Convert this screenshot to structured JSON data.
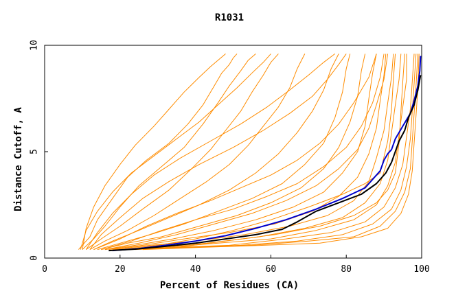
{
  "chart_data": {
    "type": "line",
    "title": "R1031",
    "xlabel": "Percent of Residues (CA)",
    "ylabel": "Distance Cutoff, A",
    "xlim": [
      0,
      100
    ],
    "ylim": [
      0,
      10
    ],
    "x_ticks": [
      "0",
      "20",
      "40",
      "60",
      "80",
      "100"
    ],
    "y_ticks": [
      "0",
      "5",
      "10"
    ],
    "colors": {
      "background_lines": "#ff8c00",
      "highlight_blue": "#0000cc",
      "highlight_black": "#000000",
      "axis": "#000000"
    },
    "series": [
      {
        "color": "#ff8c00",
        "x": [
          9,
          12,
          14,
          18,
          22,
          27,
          33,
          38,
          42,
          45,
          47,
          49,
          50,
          51
        ],
        "y": [
          0.4,
          1,
          1.8,
          2.8,
          3.8,
          4.6,
          5.4,
          6.3,
          7.2,
          8.1,
          8.7,
          9.1,
          9.4,
          9.6
        ]
      },
      {
        "color": "#ff8c00",
        "x": [
          10,
          13,
          16,
          20,
          25,
          31,
          37,
          42,
          46,
          49,
          52,
          54,
          56
        ],
        "y": [
          0.4,
          0.9,
          1.5,
          2.4,
          3.4,
          4.3,
          5.2,
          6.3,
          7.3,
          8.1,
          8.8,
          9.3,
          9.6
        ]
      },
      {
        "color": "#ff8c00",
        "x": [
          11,
          15,
          20,
          26,
          33,
          39,
          44,
          48,
          52,
          55,
          58,
          60,
          62
        ],
        "y": [
          0.4,
          0.9,
          1.5,
          2.3,
          3.2,
          4.2,
          5.1,
          6,
          6.9,
          7.8,
          8.6,
          9.2,
          9.6
        ]
      },
      {
        "color": "#ff8c00",
        "x": [
          12,
          16,
          22,
          29,
          36,
          43,
          49,
          54,
          58,
          62,
          65,
          67,
          69
        ],
        "y": [
          0.4,
          0.8,
          1.3,
          2,
          2.8,
          3.6,
          4.4,
          5.3,
          6.2,
          7.1,
          8,
          8.9,
          9.6
        ]
      },
      {
        "color": "#ff8c00",
        "x": [
          13,
          18,
          25,
          33,
          41,
          49,
          56,
          62,
          67,
          71,
          74,
          76,
          78
        ],
        "y": [
          0.4,
          0.8,
          1.3,
          1.9,
          2.5,
          3.2,
          4,
          4.9,
          5.9,
          6.9,
          7.9,
          8.9,
          9.6
        ]
      },
      {
        "color": "#ff8c00",
        "x": [
          14,
          20,
          28,
          37,
          46,
          55,
          63,
          69,
          74,
          77,
          79,
          80,
          81
        ],
        "y": [
          0.4,
          0.7,
          1.1,
          1.6,
          2.2,
          2.8,
          3.5,
          4.4,
          5.4,
          6.6,
          7.8,
          8.9,
          9.6
        ]
      },
      {
        "color": "#ff8c00",
        "x": [
          15,
          22,
          31,
          41,
          51,
          60,
          68,
          74,
          78,
          81,
          83,
          84,
          85
        ],
        "y": [
          0.4,
          0.7,
          1,
          1.5,
          2,
          2.6,
          3.3,
          4.2,
          5.2,
          6.4,
          7.6,
          8.8,
          9.6
        ]
      },
      {
        "color": "#ff8c00",
        "x": [
          16,
          24,
          34,
          45,
          56,
          66,
          74,
          79,
          83,
          85,
          86,
          87,
          88
        ],
        "y": [
          0.4,
          0.6,
          0.9,
          1.3,
          1.8,
          2.4,
          3.1,
          4,
          5,
          6.2,
          7.5,
          8.7,
          9.6
        ]
      },
      {
        "color": "#ff8c00",
        "x": [
          17,
          26,
          37,
          49,
          61,
          71,
          78,
          83,
          86,
          88,
          89,
          90,
          90.5
        ],
        "y": [
          0.4,
          0.6,
          0.9,
          1.2,
          1.6,
          2.2,
          2.9,
          3.8,
          4.9,
          6.1,
          7.4,
          8.6,
          9.6
        ]
      },
      {
        "color": "#ff8c00",
        "x": [
          18,
          28,
          40,
          53,
          65,
          75,
          82,
          86,
          88,
          90,
          91,
          92,
          92.5
        ],
        "y": [
          0.4,
          0.6,
          0.8,
          1.1,
          1.5,
          2,
          2.7,
          3.6,
          4.7,
          6,
          7.3,
          8.5,
          9.6
        ]
      },
      {
        "color": "#ff8c00",
        "x": [
          19,
          30,
          43,
          57,
          69,
          79,
          85,
          89,
          91,
          92,
          93,
          94,
          94.5
        ],
        "y": [
          0.4,
          0.5,
          0.7,
          1,
          1.4,
          1.9,
          2.6,
          3.5,
          4.6,
          5.9,
          7.2,
          8.4,
          9.6
        ]
      },
      {
        "color": "#ff8c00",
        "x": [
          20,
          32,
          46,
          60,
          72,
          82,
          88,
          91,
          93,
          94,
          95,
          96,
          96
        ],
        "y": [
          0.4,
          0.5,
          0.7,
          0.9,
          1.3,
          1.8,
          2.5,
          3.4,
          4.5,
          5.8,
          7.1,
          8.4,
          9.6
        ]
      },
      {
        "color": "#ff8c00",
        "x": [
          21,
          34,
          49,
          64,
          76,
          85,
          90,
          93,
          95,
          96,
          97,
          97.5,
          98
        ],
        "y": [
          0.4,
          0.5,
          0.6,
          0.9,
          1.2,
          1.7,
          2.4,
          3.3,
          4.4,
          5.7,
          7,
          8.3,
          9.6
        ]
      },
      {
        "color": "#ff8c00",
        "x": [
          22,
          36,
          52,
          67,
          79,
          87,
          92,
          94.5,
          96,
          97,
          97.5,
          98,
          98.5
        ],
        "y": [
          0.4,
          0.5,
          0.6,
          0.8,
          1.1,
          1.6,
          2.3,
          3.2,
          4.3,
          5.6,
          6.9,
          8.2,
          9.6
        ]
      },
      {
        "color": "#ff8c00",
        "x": [
          24,
          38,
          55,
          70,
          82,
          89,
          93,
          95.5,
          97,
          97.5,
          98,
          98.5,
          99
        ],
        "y": [
          0.4,
          0.5,
          0.6,
          0.8,
          1,
          1.5,
          2.2,
          3.1,
          4.2,
          5.5,
          6.8,
          8.1,
          9.6
        ]
      },
      {
        "color": "#ff8c00",
        "x": [
          26,
          41,
          58,
          73,
          84,
          91,
          94.5,
          96.5,
          97.5,
          98,
          98.5,
          99,
          99.3
        ],
        "y": [
          0.4,
          0.5,
          0.6,
          0.7,
          1,
          1.4,
          2.1,
          3,
          4.1,
          5.4,
          6.7,
          8,
          9.6
        ]
      },
      {
        "color": "#ff8c00",
        "x": [
          13,
          20,
          27,
          35,
          44,
          52,
          60,
          67,
          73,
          78,
          82,
          86,
          88
        ],
        "y": [
          0.4,
          0.9,
          1.5,
          2.1,
          2.7,
          3.3,
          3.9,
          4.6,
          5.4,
          6.3,
          7.3,
          8.5,
          9.6
        ]
      },
      {
        "color": "#ff8c00",
        "x": [
          15,
          23,
          31,
          40,
          50,
          59,
          67,
          74,
          80,
          84,
          87,
          89,
          90
        ],
        "y": [
          0.4,
          0.8,
          1.3,
          1.8,
          2.3,
          2.9,
          3.5,
          4.3,
          5.2,
          6.2,
          7.3,
          8.5,
          9.6
        ]
      },
      {
        "color": "#ff8c00",
        "x": [
          16,
          25,
          35,
          45,
          55,
          64,
          72,
          78,
          83,
          86,
          88,
          90,
          91
        ],
        "y": [
          0.4,
          0.7,
          1.1,
          1.6,
          2.1,
          2.7,
          3.4,
          4.2,
          5.1,
          6.1,
          7.2,
          8.4,
          9.6
        ]
      },
      {
        "color": "#ff8c00",
        "x": [
          11,
          14,
          18,
          23,
          29,
          36,
          44,
          52,
          59,
          65,
          70,
          74,
          77
        ],
        "y": [
          0.4,
          1.2,
          2.1,
          3,
          3.9,
          4.7,
          5.5,
          6.3,
          7.1,
          7.9,
          8.6,
          9.2,
          9.6
        ]
      },
      {
        "color": "#ff8c00",
        "x": [
          12,
          15,
          20,
          26,
          33,
          41,
          50,
          58,
          65,
          71,
          75,
          78,
          80
        ],
        "y": [
          0.4,
          1.1,
          1.9,
          2.8,
          3.6,
          4.4,
          5.2,
          6,
          6.8,
          7.6,
          8.4,
          9.1,
          9.6
        ]
      },
      {
        "color": "#ff8c00",
        "x": [
          10,
          11,
          13,
          16,
          20,
          24,
          29,
          33,
          37,
          41,
          44,
          46,
          48
        ],
        "y": [
          0.4,
          1.4,
          2.4,
          3.4,
          4.4,
          5.3,
          6.2,
          7,
          7.8,
          8.5,
          9,
          9.3,
          9.6
        ]
      },
      {
        "color": "#ff8c00",
        "x": [
          9.5,
          11,
          14,
          18,
          23,
          29,
          35,
          41,
          46,
          51,
          55,
          58,
          60
        ],
        "y": [
          0.4,
          1.3,
          2.2,
          3.1,
          4,
          4.8,
          5.6,
          6.4,
          7.2,
          8,
          8.7,
          9.2,
          9.6
        ]
      },
      {
        "color": "#ff8c00",
        "x": [
          20,
          30,
          40,
          50,
          60,
          70,
          79,
          85,
          89,
          91,
          92,
          92.5,
          93
        ],
        "y": [
          0.4,
          0.6,
          0.9,
          1.3,
          1.8,
          2.4,
          3,
          3.5,
          4,
          5.5,
          7,
          8.4,
          9.6
        ]
      },
      {
        "color": "#ff8c00",
        "x": [
          23,
          35,
          48,
          61,
          73,
          82,
          88,
          91,
          93,
          94,
          94.5,
          95,
          95.5
        ],
        "y": [
          0.4,
          0.5,
          0.8,
          1.1,
          1.5,
          2,
          2.6,
          3.2,
          4,
          5.4,
          6.9,
          8.3,
          9.6
        ]
      },
      {
        "color": "#0000cc",
        "x": [
          18,
          25,
          32,
          40,
          48,
          56,
          64,
          72,
          79,
          85,
          89,
          90,
          91,
          92,
          93,
          95,
          97,
          98,
          99,
          99.5,
          99.7
        ],
        "y": [
          0.35,
          0.45,
          0.6,
          0.8,
          1.05,
          1.4,
          1.8,
          2.3,
          2.8,
          3.3,
          4.1,
          4.6,
          4.9,
          5.1,
          5.6,
          6.2,
          6.8,
          7.4,
          8.1,
          8.8,
          9.5
        ]
      },
      {
        "color": "#000000",
        "x": [
          17,
          24,
          32,
          40,
          48,
          56,
          63,
          67,
          72,
          78,
          84,
          88,
          90.5,
          92,
          93,
          94,
          95.5,
          96.5,
          98,
          99,
          99.7
        ],
        "y": [
          0.35,
          0.42,
          0.55,
          0.7,
          0.9,
          1.1,
          1.35,
          1.7,
          2.2,
          2.6,
          3.0,
          3.5,
          4.0,
          4.5,
          5.0,
          5.5,
          6.0,
          6.6,
          7.2,
          7.9,
          8.6
        ]
      }
    ]
  }
}
